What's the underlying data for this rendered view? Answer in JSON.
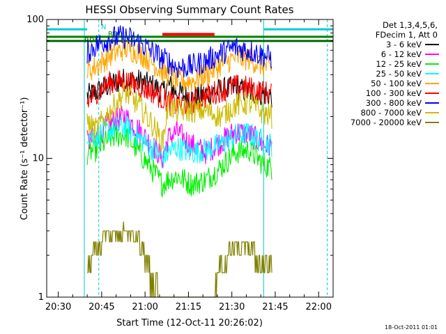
{
  "chart_data": {
    "type": "line",
    "title": "HESSI Observing Summary Count Rates",
    "xlabel": "Start Time (12-Oct-11 20:26:02)",
    "ylabel": "Count Rate (s⁻¹ detector⁻¹)",
    "y_scale": "log",
    "ylim": [
      1,
      100
    ],
    "xlim": [
      "20:26",
      "22:05"
    ],
    "x_ticks": [
      "20:30",
      "20:45",
      "21:00",
      "21:15",
      "21:30",
      "21:45",
      "22:00"
    ],
    "y_ticks": [
      "1",
      "10",
      "100"
    ],
    "legend_position": "right",
    "legend_header": [
      "Det 1,3,4,5,6,",
      "FDecim 1, Att 0"
    ],
    "series": [
      {
        "name": "3 - 6 keV",
        "color": "#000000",
        "points": [
          [
            "20:40",
            28
          ],
          [
            "20:43",
            30
          ],
          [
            "20:48",
            34
          ],
          [
            "20:53",
            37
          ],
          [
            "20:58",
            36
          ],
          [
            "21:03",
            33
          ],
          [
            "21:06",
            30
          ],
          [
            "21:08",
            34
          ],
          [
            "21:11",
            30
          ],
          [
            "21:16",
            27
          ],
          [
            "21:21",
            29
          ],
          [
            "21:26",
            31
          ],
          [
            "21:31",
            32
          ],
          [
            "21:36",
            30
          ],
          [
            "21:41",
            29
          ],
          [
            "21:44",
            28
          ]
        ]
      },
      {
        "name": "6 - 12 keV",
        "color": "#ff00ff",
        "points": [
          [
            "20:40",
            13
          ],
          [
            "20:43",
            14
          ],
          [
            "20:48",
            18
          ],
          [
            "20:53",
            20
          ],
          [
            "20:58",
            16
          ],
          [
            "21:03",
            12
          ],
          [
            "21:06",
            10
          ],
          [
            "21:08",
            14
          ],
          [
            "21:11",
            15.5
          ],
          [
            "21:16",
            12.5
          ],
          [
            "21:21",
            11
          ],
          [
            "21:26",
            13
          ],
          [
            "21:31",
            15.5
          ],
          [
            "21:36",
            15
          ],
          [
            "21:41",
            12.5
          ],
          [
            "21:44",
            12
          ]
        ]
      },
      {
        "name": "12 - 25 keV",
        "color": "#00ee00",
        "points": [
          [
            "20:40",
            11
          ],
          [
            "20:43",
            11.5
          ],
          [
            "20:48",
            14
          ],
          [
            "20:53",
            15
          ],
          [
            "20:58",
            11
          ],
          [
            "21:03",
            8
          ],
          [
            "21:06",
            6.5
          ],
          [
            "21:08",
            7
          ],
          [
            "21:11",
            7.5
          ],
          [
            "21:16",
            6.5
          ],
          [
            "21:21",
            7
          ],
          [
            "21:26",
            8.5
          ],
          [
            "21:31",
            11
          ],
          [
            "21:36",
            11.5
          ],
          [
            "21:41",
            9
          ],
          [
            "21:44",
            8.5
          ]
        ]
      },
      {
        "name": "25 - 50 keV",
        "color": "#00ffff",
        "points": [
          [
            "20:40",
            15
          ],
          [
            "20:43",
            14.5
          ],
          [
            "20:48",
            16
          ],
          [
            "20:53",
            17
          ],
          [
            "20:58",
            14
          ],
          [
            "21:03",
            11.5
          ],
          [
            "21:06",
            10
          ],
          [
            "21:08",
            11
          ],
          [
            "21:11",
            12
          ],
          [
            "21:16",
            11
          ],
          [
            "21:21",
            11.5
          ],
          [
            "21:26",
            12.5
          ],
          [
            "21:31",
            14.5
          ],
          [
            "21:36",
            15
          ],
          [
            "21:41",
            13
          ],
          [
            "21:44",
            12.5
          ]
        ]
      },
      {
        "name": "50 - 100 keV",
        "color": "#ffa500",
        "points": [
          [
            "20:40",
            42
          ],
          [
            "20:43",
            46
          ],
          [
            "20:48",
            55
          ],
          [
            "20:53",
            62
          ],
          [
            "20:58",
            58
          ],
          [
            "21:03",
            48
          ],
          [
            "21:06",
            42
          ],
          [
            "21:08",
            40
          ],
          [
            "21:11",
            36
          ],
          [
            "21:16",
            36
          ],
          [
            "21:21",
            40
          ],
          [
            "21:26",
            47
          ],
          [
            "21:31",
            53
          ],
          [
            "21:36",
            52
          ],
          [
            "21:41",
            46
          ],
          [
            "21:44",
            44
          ]
        ]
      },
      {
        "name": "100 - 300 keV",
        "color": "#ff0000",
        "points": [
          [
            "20:40",
            25
          ],
          [
            "20:43",
            30
          ],
          [
            "20:48",
            35
          ],
          [
            "20:53",
            36
          ],
          [
            "20:58",
            33
          ],
          [
            "21:03",
            30
          ],
          [
            "21:06",
            27
          ],
          [
            "21:08",
            26
          ],
          [
            "21:11",
            24
          ],
          [
            "21:16",
            25
          ],
          [
            "21:21",
            28
          ],
          [
            "21:26",
            31
          ],
          [
            "21:31",
            33
          ],
          [
            "21:36",
            32
          ],
          [
            "21:41",
            30
          ],
          [
            "21:44",
            29
          ]
        ]
      },
      {
        "name": "300 - 800 keV",
        "color": "#0000ff",
        "points": [
          [
            "20:40",
            58
          ],
          [
            "20:43",
            65
          ],
          [
            "20:48",
            73
          ],
          [
            "20:53",
            75
          ],
          [
            "20:58",
            68
          ],
          [
            "21:03",
            58
          ],
          [
            "21:06",
            52
          ],
          [
            "21:08",
            50
          ],
          [
            "21:11",
            45
          ],
          [
            "21:16",
            46
          ],
          [
            "21:21",
            50
          ],
          [
            "21:26",
            57
          ],
          [
            "21:31",
            63
          ],
          [
            "21:36",
            60
          ],
          [
            "21:41",
            55
          ],
          [
            "21:44",
            53
          ]
        ]
      },
      {
        "name": "800 - 7000 keV",
        "color": "#ccbb00",
        "points": [
          [
            "20:40",
            18
          ],
          [
            "20:43",
            16
          ],
          [
            "20:48",
            22
          ],
          [
            "20:53",
            30
          ],
          [
            "20:58",
            24
          ],
          [
            "21:03",
            17
          ],
          [
            "21:06",
            13
          ],
          [
            "21:08",
            24
          ],
          [
            "21:11",
            22
          ],
          [
            "21:16",
            22
          ],
          [
            "21:21",
            22
          ],
          [
            "21:26",
            20
          ],
          [
            "21:31",
            24
          ],
          [
            "21:36",
            25
          ],
          [
            "21:41",
            21
          ],
          [
            "21:44",
            20
          ]
        ]
      },
      {
        "name": "7000 - 20000 keV",
        "color": "#808000",
        "points": [
          [
            "20:40",
            1.9
          ],
          [
            "20:43",
            2.6
          ],
          [
            "20:48",
            3.0
          ],
          [
            "20:53",
            3.3
          ],
          [
            "20:58",
            2.8
          ],
          [
            "21:00",
            2.2
          ],
          [
            "21:06",
            1.0
          ],
          [
            "21:23",
            1.0
          ],
          [
            "21:26",
            1.9
          ],
          [
            "21:31",
            2.6
          ],
          [
            "21:35",
            2.7
          ],
          [
            "21:40",
            2.0
          ],
          [
            "21:44",
            1.9
          ]
        ]
      }
    ],
    "flag_lines": [
      {
        "label": "N",
        "color": "#00cccc",
        "segments": [
          [
            [
              "20:26",
              85
            ],
            [
              "20:40",
              85
            ]
          ],
          [
            [
              "21:41",
              85
            ],
            [
              "22:05",
              85
            ]
          ]
        ]
      },
      {
        "label": "RD0",
        "color": "#008000",
        "segments": [
          [
            [
              "20:26",
              75
            ],
            [
              "22:05",
              75
            ]
          ]
        ]
      },
      {
        "label": "RD5",
        "color": "#006600",
        "segments": [
          [
            [
              "20:26",
              70
            ],
            [
              "22:05",
              70
            ]
          ]
        ]
      }
    ],
    "vertical_markers": [
      {
        "time": "20:39",
        "color": "#00cccc",
        "style": "solid"
      },
      {
        "time": "20:44",
        "color": "#00cccc",
        "style": "dashed"
      },
      {
        "time": "21:41",
        "color": "#00cccc",
        "style": "solid"
      },
      {
        "time": "22:03",
        "color": "#00cccc",
        "style": "dashed"
      }
    ],
    "saa_gap": {
      "start": "21:06",
      "end": "21:24",
      "level": 80
    }
  },
  "timestamp": "18-Oct-2011 01:01"
}
